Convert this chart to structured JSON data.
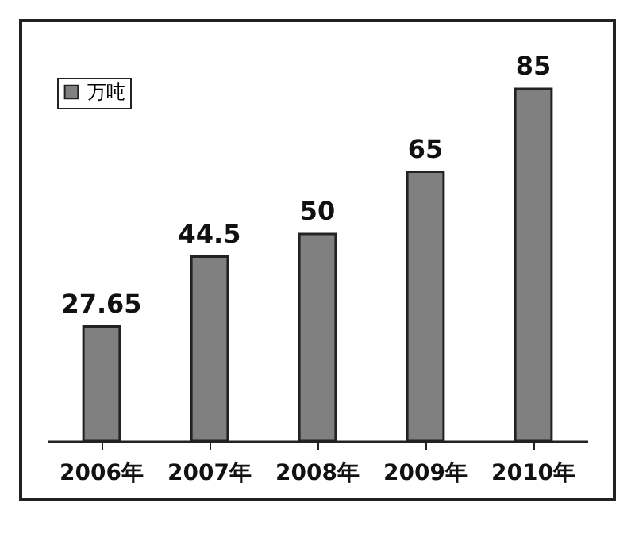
{
  "chart_data": {
    "type": "bar",
    "categories": [
      "2006年",
      "2007年",
      "2008年",
      "2009年",
      "2010年"
    ],
    "series": [
      {
        "name": "万吨",
        "color": "#808080",
        "values": [
          27.65,
          44.5,
          50,
          65,
          85
        ]
      }
    ],
    "data_labels": true,
    "legend": "top left",
    "tick_labels": "x"
  }
}
